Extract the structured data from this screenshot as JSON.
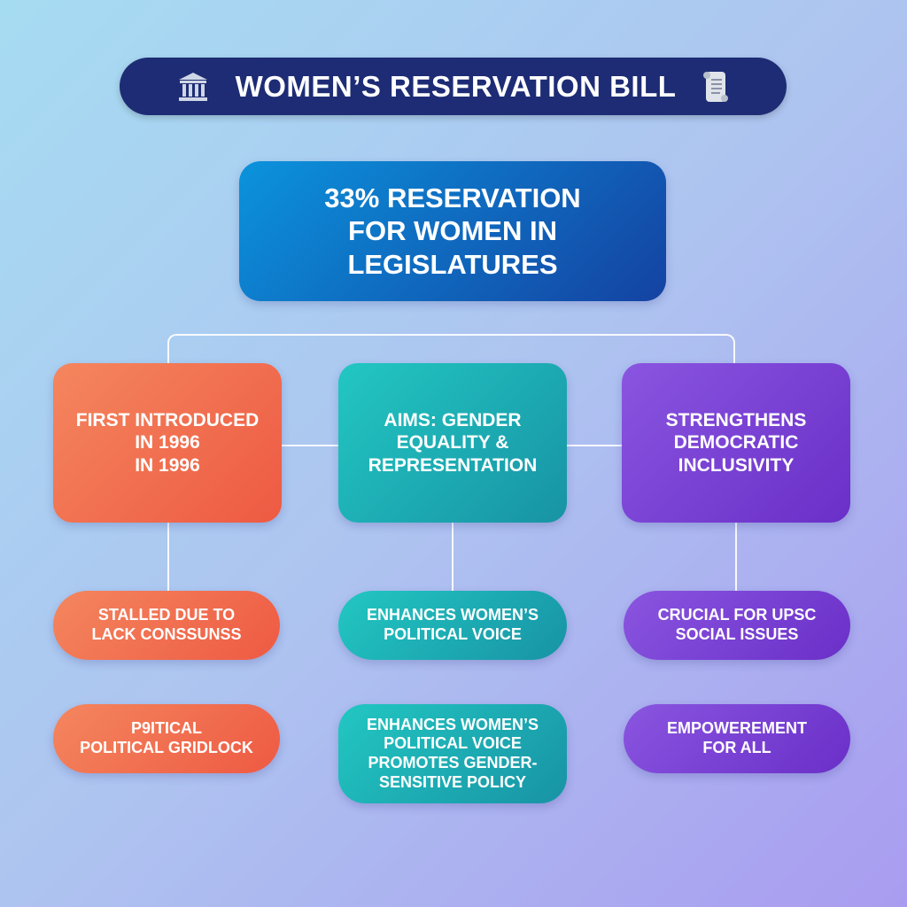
{
  "title": {
    "text": "WOMEN’S RESERVATION BILL",
    "left_icon": "government-building-icon",
    "right_icon": "scroll-document-icon"
  },
  "main": {
    "lines": [
      "33% RESERVATION",
      "FOR WOMEN IN",
      "LEGISLATURES"
    ]
  },
  "columns": [
    {
      "color": "#ef6a4c",
      "box": [
        "FIRST INTRODUCED",
        "IN 1996",
        "IN 1996"
      ],
      "pill1": [
        "STALLED DUE TO",
        "LACK CONSSUNSS"
      ],
      "pill2": [
        "P9ITICAL",
        "POLITICAL GRIDLOCK"
      ]
    },
    {
      "color": "#1eaeb4",
      "box": [
        "AIMS: GENDER",
        "EQUALITY &",
        "REPRESENTATION"
      ],
      "pill1": [
        "ENHANCES WOMEN’S",
        "POLITICAL VOICE"
      ],
      "pill2": [
        "ENHANCES WOMEN’S",
        "POLITICAL VOICE",
        "PROMOTES GENDER-",
        "SENSITIVE POLICY"
      ]
    },
    {
      "color": "#7a40d4",
      "box": [
        "STRENGTHENS",
        "DEMOCRATIC",
        "INCLUSIVITY"
      ],
      "pill1": [
        "CRUCIAL FOR UPSC",
        "SOCIAL ISSUES"
      ],
      "pill2": [
        "EMPOWEREMENT",
        "FOR ALL"
      ]
    }
  ]
}
